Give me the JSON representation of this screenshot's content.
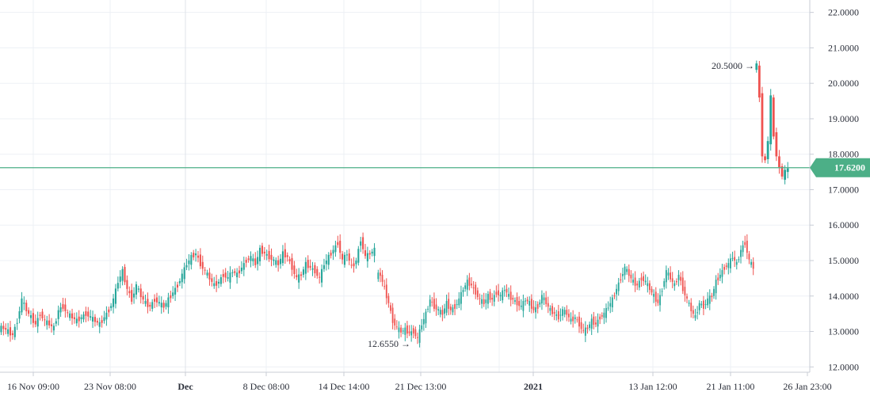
{
  "chart_data": {
    "type": "candlestick",
    "y_axis": {
      "min": 11.85,
      "max": 22.35,
      "position": "right",
      "ticks": [
        "12.0000",
        "13.0000",
        "14.0000",
        "15.0000",
        "16.0000",
        "17.0000",
        "18.0000",
        "19.0000",
        "20.0000",
        "21.0000",
        "22.0000"
      ]
    },
    "x_axis": {
      "ticks": [
        {
          "label": "16 Nov 09:00",
          "bold": false
        },
        {
          "label": "23 Nov 08:00",
          "bold": false
        },
        {
          "label": "Dec",
          "bold": true
        },
        {
          "label": "8 Dec 08:00",
          "bold": false
        },
        {
          "label": "14 Dec 14:00",
          "bold": false
        },
        {
          "label": "21 Dec 13:00",
          "bold": false
        },
        {
          "label": "2021",
          "bold": true
        },
        {
          "label": "13 Jan 12:00",
          "bold": false
        },
        {
          "label": "21 Jan 11:00",
          "bold": false
        },
        {
          "label": "26 Jan 23:00",
          "bold": false
        }
      ]
    },
    "grid": true,
    "colors": {
      "up": "#26a69a",
      "down": "#ef5350",
      "price_line": "#4caf87",
      "grid": "#edf0f5",
      "axis": "#c8ccd6"
    },
    "current_price": {
      "value": 17.62,
      "label": "17.6200"
    },
    "annotations": [
      {
        "label": "20.5000 →",
        "value": 20.5
      },
      {
        "label": "12.6550 →",
        "value": 12.655
      }
    ],
    "segments": [
      {
        "points": [
          13.1,
          13.0,
          12.9,
          13.3,
          13.9,
          13.6,
          13.4,
          13.2,
          13.5,
          13.3,
          13.2,
          13.1,
          13.6,
          13.7,
          13.5,
          13.4,
          13.3,
          13.4,
          13.5,
          13.4,
          13.3,
          13.2,
          13.4,
          13.6,
          13.9,
          14.4,
          14.7,
          14.2,
          13.9,
          14.3,
          14.0,
          13.8,
          13.7,
          13.9,
          13.8,
          13.7,
          13.9,
          14.1,
          14.3,
          14.6,
          14.9,
          15.1,
          15.2,
          14.9,
          14.7,
          14.5,
          14.3,
          14.4,
          14.6,
          14.5,
          14.7,
          14.6,
          14.8,
          15.0,
          15.1,
          14.9,
          15.3,
          15.2,
          15.1,
          15.0,
          14.9,
          15.2,
          15.1,
          14.8,
          14.5,
          14.6,
          14.9,
          14.8,
          14.7,
          14.5,
          14.9,
          15.1,
          15.3,
          15.5,
          15.0,
          15.2,
          14.8,
          15.0,
          15.6,
          15.1,
          15.2,
          15.3
        ]
      },
      {
        "points": [
          14.6,
          14.2,
          13.8,
          13.3,
          13.1,
          13.0,
          13.05,
          12.95,
          13.0,
          12.8,
          13.2,
          13.5,
          13.9,
          13.7,
          13.6,
          13.5,
          13.8,
          13.6,
          13.7,
          13.9,
          14.2,
          14.4,
          14.3,
          14.1,
          13.9,
          13.8,
          14.0,
          13.9,
          14.1,
          14.0,
          14.2,
          14.0,
          13.9,
          13.8,
          13.7,
          13.9,
          13.8,
          13.6,
          13.7,
          14.0,
          13.8,
          13.6,
          13.5,
          13.4,
          13.6,
          13.5,
          13.3,
          13.4,
          13.2,
          13.0,
          13.1,
          13.3,
          13.2,
          13.4,
          13.5,
          13.7,
          13.9,
          14.2,
          14.5,
          14.8,
          14.6,
          14.4,
          14.3,
          14.5,
          14.4,
          14.2,
          14.0,
          13.8,
          14.2,
          14.7,
          14.5,
          14.3,
          14.6,
          14.2,
          13.9,
          13.6,
          13.4,
          13.8,
          13.7,
          13.9,
          14.0,
          14.4,
          14.6,
          14.8,
          14.9,
          15.1,
          14.9,
          15.3,
          15.5,
          15.0,
          14.8
        ]
      },
      {
        "points": [
          20.5,
          19.6,
          18.0,
          17.8,
          18.4,
          19.6,
          18.5,
          18.0,
          17.6,
          17.4,
          17.5,
          17.6
        ]
      }
    ]
  }
}
